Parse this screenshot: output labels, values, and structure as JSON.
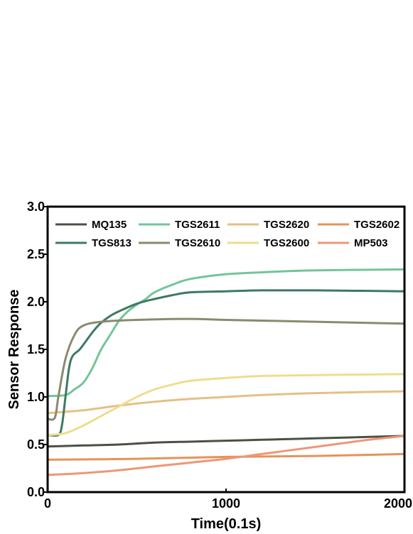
{
  "chart_data": {
    "type": "line",
    "xlabel": "Time(0.1s)",
    "ylabel": "Sensor Response",
    "xlim": [
      0,
      2000
    ],
    "ylim": [
      0,
      3.0
    ],
    "xticks": [
      0,
      1000,
      2000
    ],
    "xtick_labels": [
      "0",
      "1000",
      "2000"
    ],
    "yticks": [
      0,
      0.5,
      1.0,
      1.5,
      2.0,
      2.5,
      3.0
    ],
    "ytick_labels": [
      "0.0",
      "0.5",
      "1.0",
      "1.5",
      "2.0",
      "2.5",
      "3.0"
    ],
    "grid": false,
    "legend": {
      "position": "top",
      "columns": 4
    },
    "series": [
      {
        "name": "MQ135",
        "color": "#4b5046",
        "x": [
          0,
          200,
          400,
          600,
          800,
          1000,
          1200,
          1400,
          1600,
          1800,
          2000
        ],
        "y": [
          0.48,
          0.49,
          0.5,
          0.52,
          0.53,
          0.54,
          0.55,
          0.56,
          0.57,
          0.58,
          0.59
        ]
      },
      {
        "name": "TGS2611",
        "color": "#72c598",
        "x": [
          0,
          100,
          150,
          200,
          250,
          300,
          350,
          400,
          450,
          500,
          550,
          600,
          700,
          800,
          1000,
          1200,
          1500,
          2000
        ],
        "y": [
          1.01,
          1.02,
          1.08,
          1.15,
          1.3,
          1.5,
          1.65,
          1.8,
          1.9,
          1.97,
          2.03,
          2.1,
          2.18,
          2.24,
          2.29,
          2.31,
          2.33,
          2.34
        ]
      },
      {
        "name": "TGS2620",
        "color": "#e6bf85",
        "x": [
          0,
          200,
          400,
          600,
          800,
          1000,
          1200,
          1500,
          2000
        ],
        "y": [
          0.83,
          0.86,
          0.91,
          0.95,
          0.98,
          1.0,
          1.02,
          1.04,
          1.06
        ]
      },
      {
        "name": "TGS2602",
        "color": "#e5935a",
        "x": [
          0,
          500,
          1000,
          1500,
          2000
        ],
        "y": [
          0.34,
          0.35,
          0.37,
          0.38,
          0.4
        ]
      },
      {
        "name": "TGS813",
        "color": "#3c7a61",
        "x": [
          0,
          60,
          80,
          100,
          120,
          140,
          180,
          220,
          260,
          300,
          350,
          400,
          500,
          600,
          700,
          800,
          1000,
          1200,
          1500,
          2000
        ],
        "y": [
          0.6,
          0.6,
          0.7,
          1.0,
          1.3,
          1.43,
          1.5,
          1.6,
          1.7,
          1.78,
          1.85,
          1.9,
          1.98,
          2.03,
          2.07,
          2.1,
          2.11,
          2.12,
          2.12,
          2.11
        ]
      },
      {
        "name": "TGS2610",
        "color": "#8b8a6f",
        "x": [
          0,
          40,
          60,
          100,
          150,
          200,
          300,
          500,
          800,
          1000,
          1500,
          2000
        ],
        "y": [
          0.77,
          0.78,
          1.0,
          1.4,
          1.65,
          1.75,
          1.79,
          1.81,
          1.82,
          1.81,
          1.79,
          1.77
        ]
      },
      {
        "name": "TGS2600",
        "color": "#efdd8e",
        "x": [
          0,
          100,
          200,
          300,
          400,
          500,
          600,
          700,
          800,
          1000,
          1200,
          1500,
          2000
        ],
        "y": [
          0.6,
          0.62,
          0.7,
          0.8,
          0.9,
          1.0,
          1.08,
          1.13,
          1.17,
          1.2,
          1.22,
          1.23,
          1.24
        ]
      },
      {
        "name": "MP503",
        "color": "#ef9677",
        "x": [
          0,
          200,
          400,
          600,
          800,
          1000,
          1200,
          1400,
          1600,
          1800,
          2000
        ],
        "y": [
          0.18,
          0.2,
          0.23,
          0.27,
          0.31,
          0.35,
          0.4,
          0.45,
          0.5,
          0.55,
          0.59
        ]
      }
    ]
  }
}
